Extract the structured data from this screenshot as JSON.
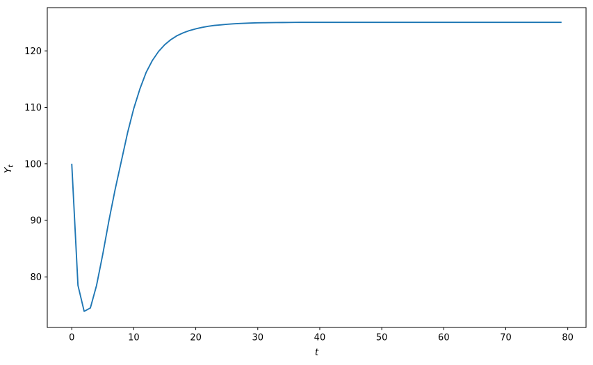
{
  "chart_data": {
    "type": "line",
    "title": "",
    "xlabel": "t",
    "ylabel_main": "Y",
    "ylabel_sub": "t",
    "x": [
      0,
      1,
      2,
      3,
      4,
      5,
      6,
      7,
      8,
      9,
      10,
      11,
      12,
      13,
      14,
      15,
      16,
      17,
      18,
      19,
      20,
      21,
      22,
      23,
      24,
      25,
      26,
      27,
      28,
      29,
      30,
      31,
      32,
      33,
      34,
      35,
      36,
      37,
      38,
      39,
      40,
      41,
      42,
      43,
      44,
      45,
      46,
      47,
      48,
      49,
      50,
      51,
      52,
      53,
      54,
      55,
      56,
      57,
      58,
      59,
      60,
      61,
      62,
      63,
      64,
      65,
      66,
      67,
      68,
      69,
      70,
      71,
      72,
      73,
      74,
      75,
      76,
      77,
      78,
      79
    ],
    "y": [
      100.0,
      78.5,
      73.9,
      74.5,
      78.5,
      84.0,
      90.0,
      95.5,
      100.5,
      105.5,
      109.8,
      113.3,
      116.2,
      118.3,
      119.9,
      121.1,
      122.0,
      122.7,
      123.2,
      123.6,
      123.9,
      124.15,
      124.35,
      124.5,
      124.6,
      124.7,
      124.78,
      124.84,
      124.89,
      124.93,
      124.96,
      124.98,
      125.0,
      125.01,
      125.02,
      125.03,
      125.04,
      125.05,
      125.05,
      125.05,
      125.05,
      125.05,
      125.05,
      125.05,
      125.05,
      125.05,
      125.05,
      125.05,
      125.05,
      125.05,
      125.05,
      125.05,
      125.05,
      125.05,
      125.05,
      125.05,
      125.05,
      125.05,
      125.05,
      125.05,
      125.05,
      125.05,
      125.05,
      125.05,
      125.05,
      125.05,
      125.05,
      125.05,
      125.05,
      125.05,
      125.05,
      125.05,
      125.05,
      125.05,
      125.05,
      125.05,
      125.05,
      125.05,
      125.05,
      125.05
    ],
    "xlim": [
      -3.95,
      82.95
    ],
    "ylim": [
      71.05,
      127.65
    ],
    "x_ticks": [
      0,
      10,
      20,
      30,
      40,
      50,
      60,
      70,
      80
    ],
    "y_ticks": [
      80,
      90,
      100,
      110,
      120
    ],
    "line_color": "#1f77b4",
    "spine_color": "#000000",
    "background": "#ffffff",
    "grid": false,
    "legend": null
  }
}
